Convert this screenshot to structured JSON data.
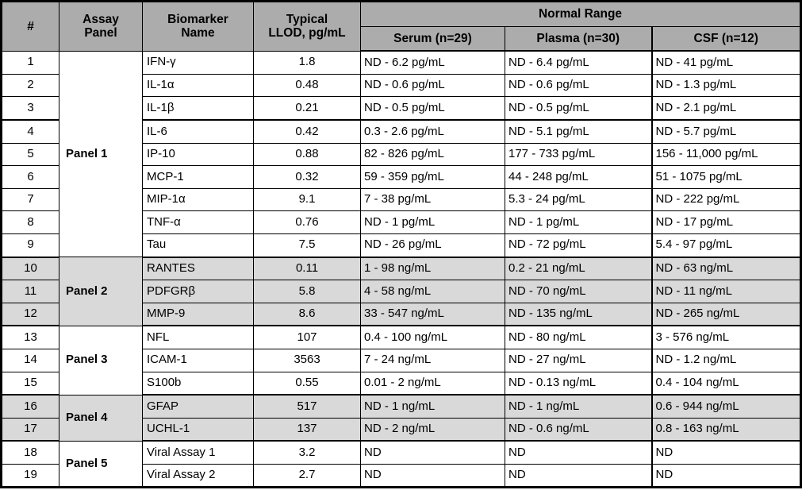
{
  "colors": {
    "header_bg": "#acacac",
    "shaded_row_bg": "#d9d9d9",
    "border": "#000000",
    "text": "#000000",
    "row_bg": "#ffffff"
  },
  "table": {
    "headers": {
      "num": "#",
      "assay_panel_line1": "Assay",
      "assay_panel_line2": "Panel",
      "biomarker_line1": "Biomarker",
      "biomarker_line2": "Name",
      "llod_line1": "Typical",
      "llod_line2": "LLOD, pg/mL",
      "normal_range": "Normal Range",
      "serum": "Serum (n=29)",
      "plasma": "Plasma (n=30)",
      "csf": "CSF (n=12)"
    },
    "panels": [
      {
        "label": "Panel 1",
        "rows": "1-9"
      },
      {
        "label": "Panel 2",
        "rows": "10-12"
      },
      {
        "label": "Panel 3",
        "rows": "13-15"
      },
      {
        "label": "Panel 4",
        "rows": "16-17"
      },
      {
        "label": "Panel 5",
        "rows": "18-19"
      }
    ],
    "rows": [
      {
        "num": "1",
        "biomarker": "IFN-γ",
        "llod": "1.8",
        "serum": "ND - 6.2 pg/mL",
        "plasma": "ND - 6.4 pg/mL",
        "csf": "ND - 41 pg/mL"
      },
      {
        "num": "2",
        "biomarker": "IL-1α",
        "llod": "0.48",
        "serum": "ND - 0.6 pg/mL",
        "plasma": "ND - 0.6 pg/mL",
        "csf": "ND - 1.3 pg/mL"
      },
      {
        "num": "3",
        "biomarker": "IL-1β",
        "llod": "0.21",
        "serum": "ND - 0.5 pg/mL",
        "plasma": "ND - 0.5 pg/mL",
        "csf": "ND - 2.1 pg/mL"
      },
      {
        "num": "4",
        "biomarker": "IL-6",
        "llod": "0.42",
        "serum": "0.3 - 2.6 pg/mL",
        "plasma": "ND - 5.1 pg/mL",
        "csf": "ND - 5.7 pg/mL"
      },
      {
        "num": "5",
        "biomarker": "IP-10",
        "llod": "0.88",
        "serum": "82 - 826 pg/mL",
        "plasma": "177 - 733 pg/mL",
        "csf": "156 - 11,000 pg/mL"
      },
      {
        "num": "6",
        "biomarker": "MCP-1",
        "llod": "0.32",
        "serum": "59 - 359 pg/mL",
        "plasma": "44 - 248 pg/mL",
        "csf": "51 - 1075 pg/mL"
      },
      {
        "num": "7",
        "biomarker": "MIP-1α",
        "llod": "9.1",
        "serum": "7 - 38 pg/mL",
        "plasma": "5.3 - 24 pg/mL",
        "csf": "ND - 222 pg/mL"
      },
      {
        "num": "8",
        "biomarker": "TNF-α",
        "llod": "0.76",
        "serum": "ND - 1 pg/mL",
        "plasma": "ND - 1 pg/mL",
        "csf": "ND - 17 pg/mL"
      },
      {
        "num": "9",
        "biomarker": "Tau",
        "llod": "7.5",
        "serum": "ND - 26 pg/mL",
        "plasma": "ND - 72 pg/mL",
        "csf": "5.4 - 97 pg/mL"
      },
      {
        "num": "10",
        "biomarker": "RANTES",
        "llod": "0.11",
        "serum": "1 - 98 ng/mL",
        "plasma": "0.2 - 21 ng/mL",
        "csf": "ND - 63 ng/mL"
      },
      {
        "num": "11",
        "biomarker": "PDFGRβ",
        "llod": "5.8",
        "serum": "4 - 58 ng/mL",
        "plasma": "ND - 70 ng/mL",
        "csf": "ND - 11 ng/mL"
      },
      {
        "num": "12",
        "biomarker": "MMP-9",
        "llod": "8.6",
        "serum": "33 - 547 ng/mL",
        "plasma": "ND - 135 ng/mL",
        "csf": "ND - 265 ng/mL"
      },
      {
        "num": "13",
        "biomarker": "NFL",
        "llod": "107",
        "serum": "0.4 - 100 ng/mL",
        "plasma": "ND - 80 ng/mL",
        "csf": "3 - 576 ng/mL"
      },
      {
        "num": "14",
        "biomarker": "ICAM-1",
        "llod": "3563",
        "serum": "7 - 24 ng/mL",
        "plasma": "ND - 27 ng/mL",
        "csf": "ND - 1.2 ng/mL"
      },
      {
        "num": "15",
        "biomarker": "S100b",
        "llod": "0.55",
        "serum": "0.01 - 2 ng/mL",
        "plasma": "ND - 0.13 ng/mL",
        "csf": "0.4 - 104 ng/mL"
      },
      {
        "num": "16",
        "biomarker": "GFAP",
        "llod": "517",
        "serum": "ND - 1 ng/mL",
        "plasma": "ND - 1 ng/mL",
        "csf": "0.6 - 944 ng/mL"
      },
      {
        "num": "17",
        "biomarker": "UCHL-1",
        "llod": "137",
        "serum": "ND - 2 ng/mL",
        "plasma": "ND - 0.6 ng/mL",
        "csf": "0.8 - 163 ng/mL"
      },
      {
        "num": "18",
        "biomarker": "Viral Assay 1",
        "llod": "3.2",
        "serum": "ND",
        "plasma": "ND",
        "csf": "ND"
      },
      {
        "num": "19",
        "biomarker": "Viral Assay 2",
        "llod": "2.7",
        "serum": "ND",
        "plasma": "ND",
        "csf": "ND"
      }
    ]
  }
}
